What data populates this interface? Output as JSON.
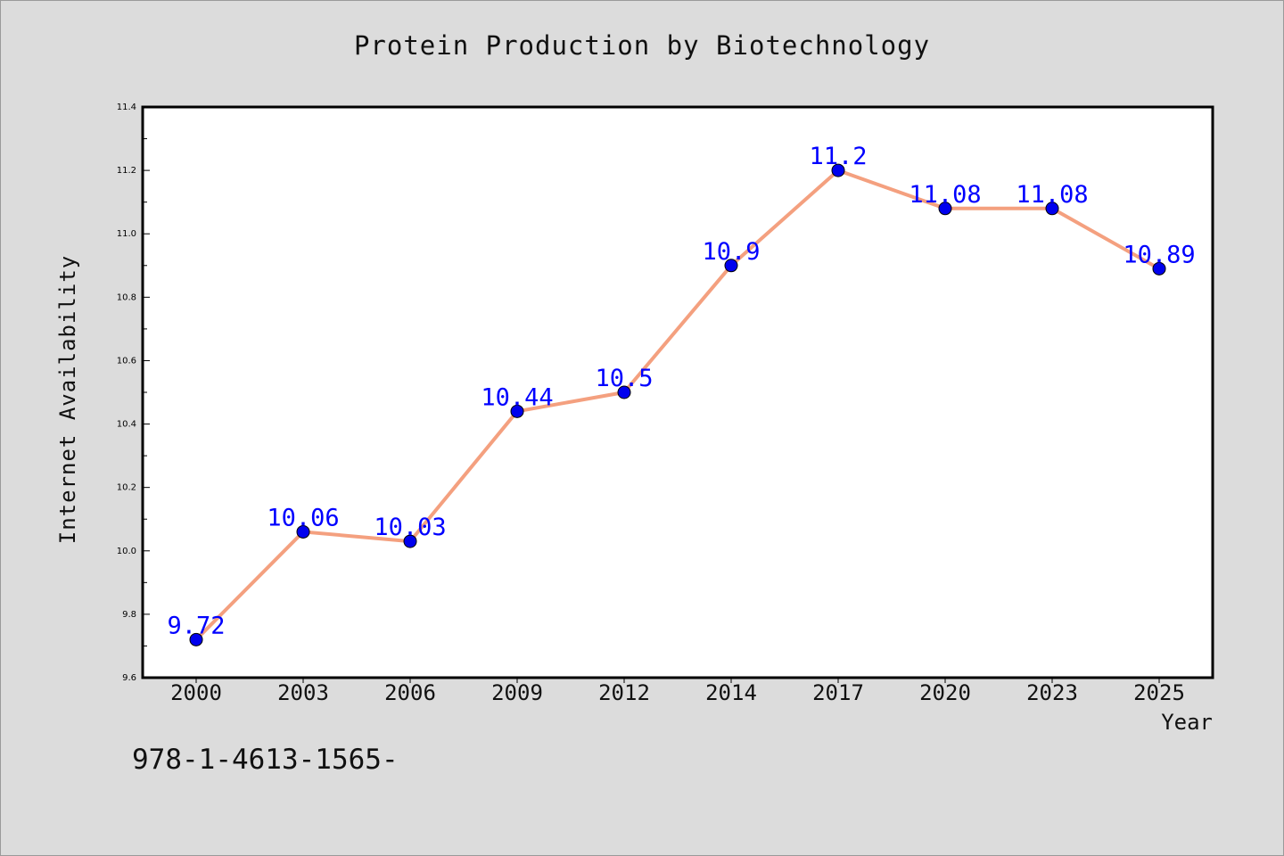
{
  "chart_data": {
    "type": "line",
    "title": "Protein Production by Biotechnology",
    "xlabel": "Year",
    "ylabel": "Internet Availability",
    "categories": [
      "2000",
      "2003",
      "2006",
      "2009",
      "2012",
      "2014",
      "2017",
      "2020",
      "2023",
      "2025"
    ],
    "series": [
      {
        "values": [
          9.72,
          10.06,
          10.03,
          10.44,
          10.5,
          10.9,
          11.2,
          11.08,
          11.08,
          10.89
        ],
        "labels": [
          "9.72",
          "10.06",
          "10.03",
          "10.44",
          "10.5",
          "10.9",
          "11.2",
          "11.08",
          "11.08",
          "10.89"
        ],
        "line_color": "#f4a07f",
        "marker_color": "#0000ee"
      }
    ],
    "ylim": [
      9.6,
      11.4
    ],
    "yticks": [
      "9.6",
      "9.8",
      "10.0",
      "10.2",
      "10.4",
      "10.6",
      "10.8",
      "11.0",
      "11.2",
      "11.4"
    ],
    "grid": false,
    "legend": "none",
    "label_color": "#0000ff"
  },
  "footer": {
    "code": "978-1-4613-1565-"
  }
}
